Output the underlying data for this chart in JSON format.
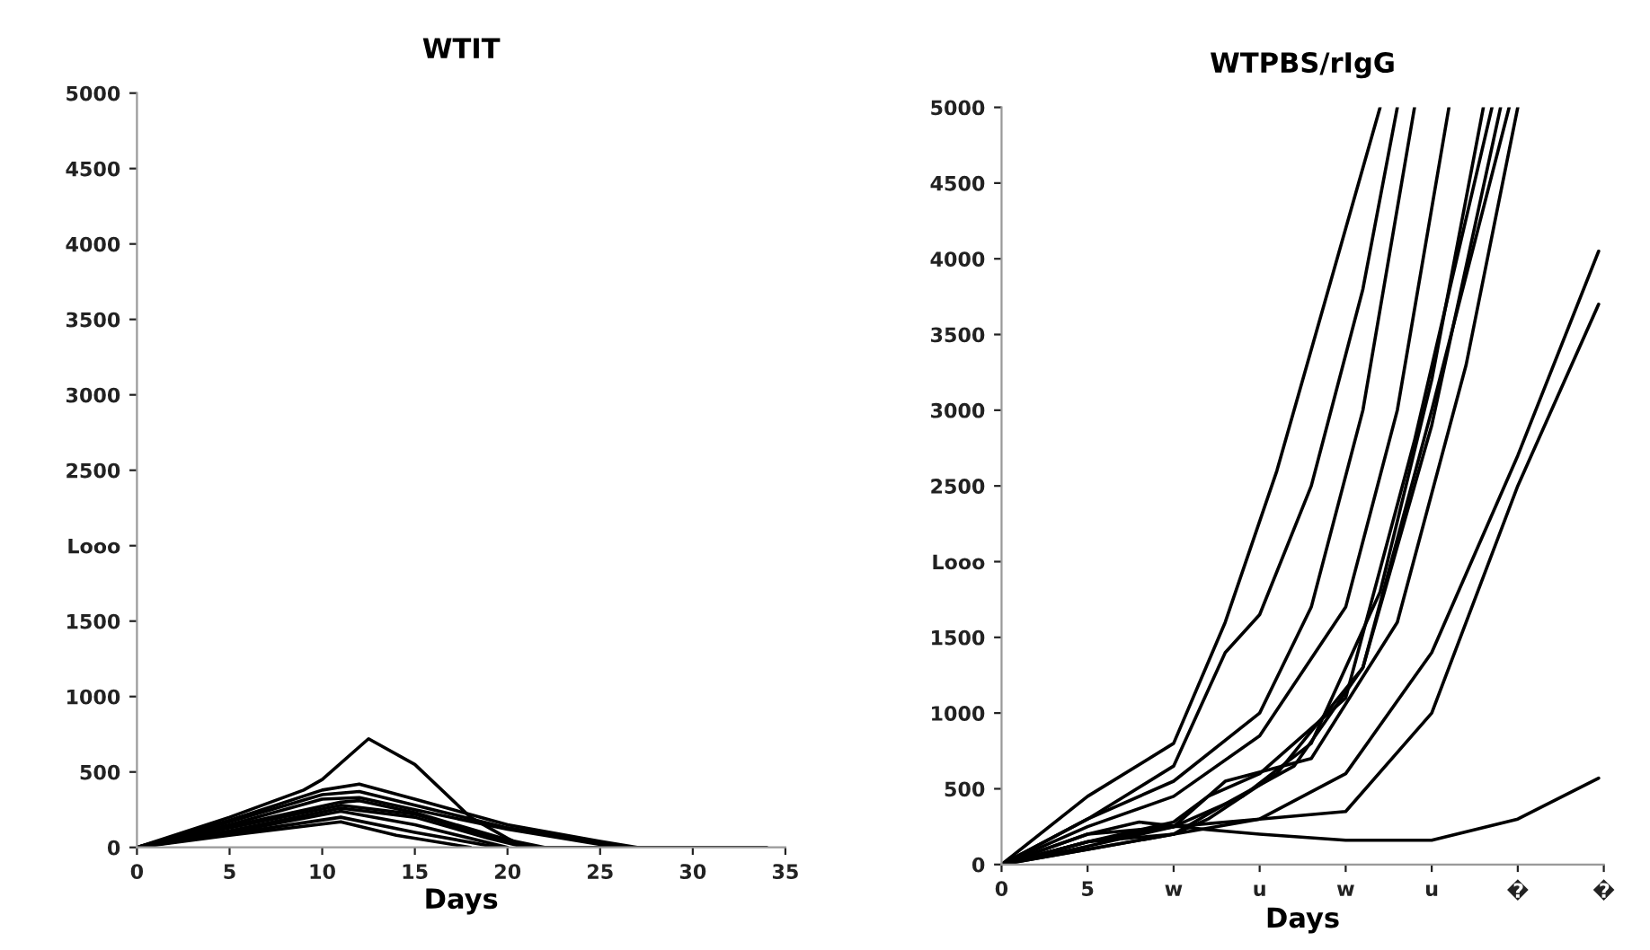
{
  "chart_data": [
    {
      "type": "line",
      "title": "WTIT",
      "xlabel": "Days",
      "xlim": [
        0,
        35
      ],
      "xticks": [
        0,
        5,
        10,
        15,
        20,
        25,
        30,
        35
      ],
      "ylim": [
        0,
        5000
      ],
      "yticks": [
        0,
        500,
        1000,
        1500,
        {
          "value": 2000,
          "label": "Looo"
        },
        2500,
        3000,
        3500,
        4000,
        4500,
        5000
      ],
      "grid": false,
      "legend": false,
      "series": [
        {
          "color": "#000000",
          "x": [
            0,
            5,
            9,
            10,
            12.5,
            15,
            18,
            20,
            21,
            24,
            34
          ],
          "values": [
            0,
            200,
            380,
            450,
            720,
            550,
            200,
            60,
            0,
            0,
            0
          ]
        },
        {
          "color": "#000000",
          "x": [
            0,
            5,
            10,
            12,
            15,
            20,
            25,
            27
          ],
          "values": [
            0,
            180,
            380,
            420,
            320,
            150,
            40,
            0
          ]
        },
        {
          "color": "#000000",
          "x": [
            0,
            5,
            10,
            12,
            15,
            20,
            25,
            26.5
          ],
          "values": [
            0,
            170,
            350,
            370,
            280,
            130,
            30,
            0
          ]
        },
        {
          "color": "#000000",
          "x": [
            0,
            5,
            10,
            12,
            15,
            20,
            25,
            26
          ],
          "values": [
            0,
            150,
            320,
            330,
            250,
            120,
            20,
            0
          ]
        },
        {
          "color": "#000000",
          "x": [
            0,
            5,
            11,
            12,
            15,
            20,
            22
          ],
          "values": [
            0,
            140,
            300,
            310,
            230,
            50,
            0
          ]
        },
        {
          "color": "#000000",
          "x": [
            0,
            5,
            11,
            15,
            20,
            21.5
          ],
          "values": [
            0,
            130,
            280,
            220,
            40,
            0
          ]
        },
        {
          "color": "#000000",
          "x": [
            0,
            5,
            11,
            15,
            19,
            21
          ],
          "values": [
            0,
            110,
            260,
            200,
            60,
            0
          ]
        },
        {
          "color": "#000000",
          "x": [
            0,
            5,
            11,
            15,
            20
          ],
          "values": [
            0,
            100,
            240,
            150,
            0
          ]
        },
        {
          "color": "#000000",
          "x": [
            0,
            5,
            11,
            15,
            19.5
          ],
          "values": [
            0,
            90,
            200,
            100,
            0
          ]
        },
        {
          "color": "#000000",
          "x": [
            0,
            5,
            11,
            14,
            18
          ],
          "values": [
            0,
            80,
            170,
            80,
            0
          ]
        }
      ]
    },
    {
      "type": "line",
      "title": "WTPBS/rIgG",
      "xlabel": "Days",
      "xlim": [
        0,
        35
      ],
      "xticks": [
        0,
        5,
        {
          "value": 10,
          "label": "w"
        },
        {
          "value": 15,
          "label": "u"
        },
        {
          "value": 20,
          "label": "w"
        },
        {
          "value": 25,
          "label": "u"
        },
        {
          "value": 30,
          "label": "�"
        },
        {
          "value": 35,
          "label": "�"
        }
      ],
      "ylim": [
        0,
        5000
      ],
      "yticks": [
        0,
        500,
        1000,
        1500,
        {
          "value": 2000,
          "label": "Looo"
        },
        2500,
        3000,
        3500,
        4000,
        4500,
        5000
      ],
      "grid": false,
      "legend": false,
      "series": [
        {
          "color": "#000000",
          "x": [
            0,
            5,
            10,
            13,
            16,
            19,
            22
          ],
          "values": [
            0,
            450,
            800,
            1600,
            2600,
            3800,
            5000
          ]
        },
        {
          "color": "#000000",
          "x": [
            0,
            5,
            10,
            13,
            15,
            18,
            21,
            23
          ],
          "values": [
            0,
            300,
            650,
            1400,
            1650,
            2500,
            3800,
            5000
          ]
        },
        {
          "color": "#000000",
          "x": [
            0,
            5,
            10,
            15,
            18,
            21,
            24
          ],
          "values": [
            0,
            300,
            550,
            1000,
            1700,
            3000,
            5000
          ]
        },
        {
          "color": "#000000",
          "x": [
            0,
            5,
            10,
            15,
            20,
            23,
            26
          ],
          "values": [
            0,
            250,
            450,
            850,
            1700,
            3000,
            5000
          ]
        },
        {
          "color": "#000000",
          "x": [
            0,
            5,
            10,
            14,
            18,
            22,
            25,
            28
          ],
          "values": [
            0,
            200,
            250,
            450,
            800,
            1800,
            3200,
            5000
          ]
        },
        {
          "color": "#000000",
          "x": [
            0,
            5,
            10,
            12,
            15,
            20,
            24,
            28.5
          ],
          "values": [
            0,
            150,
            280,
            450,
            600,
            1100,
            2800,
            5000
          ]
        },
        {
          "color": "#000000",
          "x": [
            0,
            5,
            10,
            13,
            17,
            21,
            25,
            29
          ],
          "values": [
            0,
            150,
            200,
            400,
            650,
            1300,
            2900,
            5000
          ]
        },
        {
          "color": "#000000",
          "x": [
            0,
            5,
            10,
            12,
            16,
            21,
            25,
            29.5
          ],
          "values": [
            0,
            100,
            200,
            300,
            600,
            1300,
            3000,
            5000
          ]
        },
        {
          "color": "#000000",
          "x": [
            0,
            5,
            10,
            13,
            18,
            23,
            27,
            30
          ],
          "values": [
            0,
            120,
            250,
            550,
            700,
            1600,
            3300,
            5000
          ]
        },
        {
          "color": "#000000",
          "x": [
            0,
            5,
            10,
            15,
            20,
            25,
            30,
            34.7
          ],
          "values": [
            0,
            100,
            200,
            300,
            600,
            1400,
            2700,
            4050
          ]
        },
        {
          "color": "#000000",
          "x": [
            0,
            5,
            10,
            15,
            20,
            25,
            30,
            34.7
          ],
          "values": [
            0,
            150,
            250,
            300,
            350,
            1000,
            2500,
            3700
          ]
        },
        {
          "color": "#000000",
          "x": [
            0,
            5,
            8,
            12,
            15,
            20,
            25,
            30,
            34.7
          ],
          "values": [
            0,
            200,
            280,
            230,
            200,
            160,
            160,
            300,
            570
          ]
        }
      ]
    }
  ]
}
